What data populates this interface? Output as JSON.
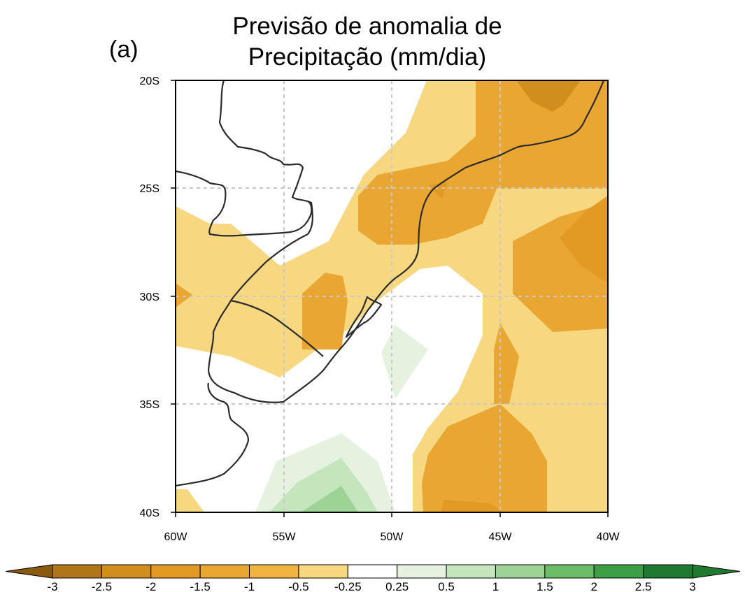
{
  "panel_label": "(a)",
  "title_line1": "Previsão de anomalia de",
  "title_line2": "Precipitação (mm/dia)",
  "map": {
    "lon_range": [
      -60,
      -40
    ],
    "lat_range": [
      -40,
      -20
    ],
    "x_ticks": [
      "60W",
      "55W",
      "50W",
      "45W",
      "40W"
    ],
    "y_ticks": [
      "20S",
      "25S",
      "30S",
      "35S",
      "40S"
    ],
    "grid": "dashed"
  },
  "colorbar": {
    "labels": [
      "-3",
      "-2.5",
      "-2",
      "-1.5",
      "-1",
      "-0.5",
      "-0.25",
      "0.25",
      "0.5",
      "1",
      "1.5",
      "2",
      "2.5",
      "3"
    ],
    "colors": [
      "#8a5a0f",
      "#b07518",
      "#d08e1c",
      "#e29a25",
      "#eaa632",
      "#f1b441",
      "#f7d77f",
      "#ffffff",
      "#e5f2e0",
      "#c4e6bd",
      "#9ed396",
      "#6cbd67",
      "#3c9e45",
      "#1f7a30"
    ]
  }
}
